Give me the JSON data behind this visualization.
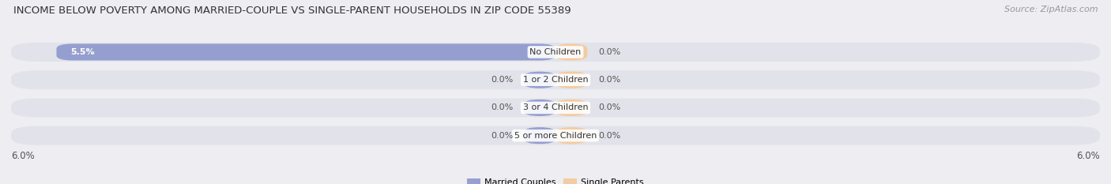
{
  "title": "INCOME BELOW POVERTY AMONG MARRIED-COUPLE VS SINGLE-PARENT HOUSEHOLDS IN ZIP CODE 55389",
  "source": "Source: ZipAtlas.com",
  "categories": [
    "No Children",
    "1 or 2 Children",
    "3 or 4 Children",
    "5 or more Children"
  ],
  "married_values": [
    5.5,
    0.0,
    0.0,
    0.0
  ],
  "single_values": [
    0.0,
    0.0,
    0.0,
    0.0
  ],
  "married_color": "#8b96cc",
  "single_color": "#f5c896",
  "married_label": "Married Couples",
  "single_label": "Single Parents",
  "xlim": 6.0,
  "zero_bar_width": 0.35,
  "background_color": "#ededf2",
  "bar_bg_color": "#e2e2ea",
  "title_fontsize": 9.5,
  "source_fontsize": 8,
  "label_fontsize": 8,
  "tick_fontsize": 8.5
}
